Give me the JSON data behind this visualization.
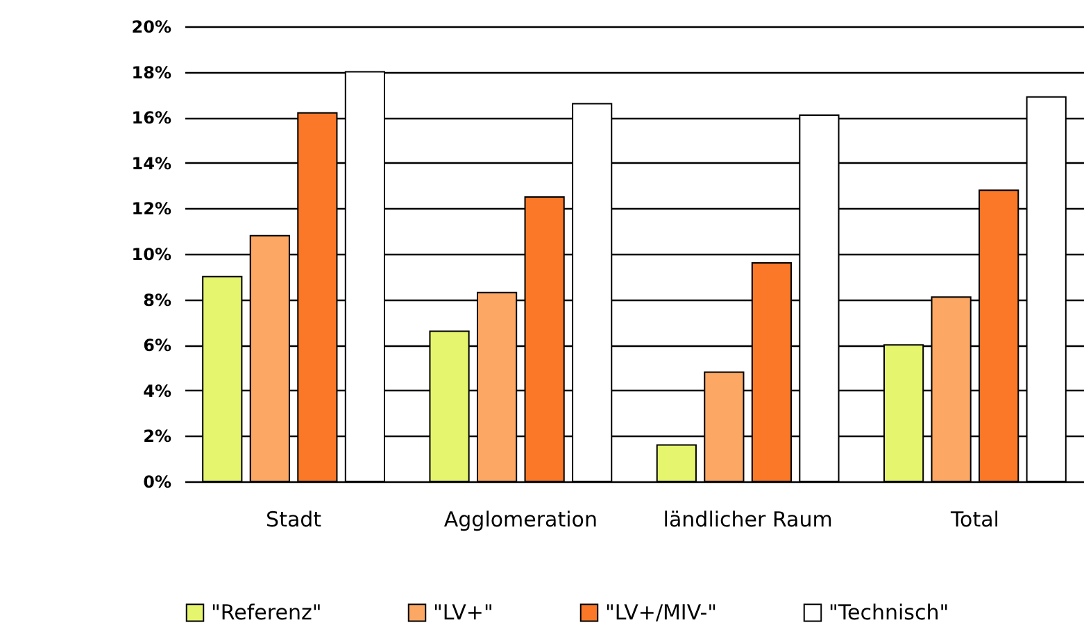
{
  "chart_data": {
    "type": "bar",
    "categories": [
      "Stadt",
      "Agglomeration",
      "ländlicher Raum",
      "Total"
    ],
    "series": [
      {
        "name": "\"Referenz\"",
        "color": "#e6f56e",
        "values": [
          9.0,
          6.6,
          1.6,
          6.0
        ]
      },
      {
        "name": "\"LV+\"",
        "color": "#fca864",
        "values": [
          10.8,
          8.3,
          4.8,
          8.1
        ]
      },
      {
        "name": "\"LV+/MIV-\"",
        "color": "#fa7828",
        "values": [
          16.2,
          12.5,
          9.6,
          12.8
        ]
      },
      {
        "name": "\"Technisch\"",
        "color": "#ffffff",
        "values": [
          18.0,
          16.6,
          16.1,
          16.9
        ]
      }
    ],
    "ylim": [
      0,
      20
    ],
    "yticks": [
      {
        "value": 0,
        "label": "0%"
      },
      {
        "value": 2,
        "label": "2%"
      },
      {
        "value": 4,
        "label": "4%"
      },
      {
        "value": 6,
        "label": "6%"
      },
      {
        "value": 8,
        "label": "8%"
      },
      {
        "value": 10,
        "label": "10%"
      },
      {
        "value": 12,
        "label": "12%"
      },
      {
        "value": 14,
        "label": "14%"
      },
      {
        "value": 16,
        "label": "16%"
      },
      {
        "value": 18,
        "label": "18%"
      },
      {
        "value": 20,
        "label": "20%"
      }
    ],
    "grid": "y",
    "legend": "bottom"
  }
}
